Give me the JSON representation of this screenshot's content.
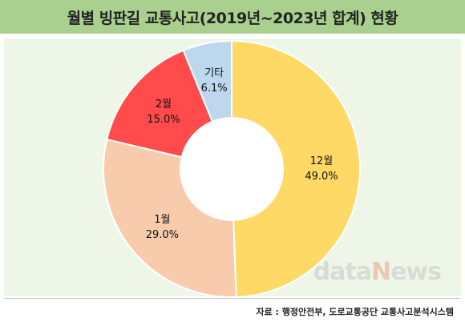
{
  "title": "월별 빙판길 교통사고(2019년~2023년 합계) 현황",
  "source": "자료 : 행정안전부, 도로교통공단 교통사고분석시스템",
  "watermark": {
    "part1": "data",
    "part2": "N",
    "part3": "ews"
  },
  "colors": {
    "title_bg": "#aad08f",
    "plot_bg": "#eef6e8",
    "slices": [
      "#ffd966",
      "#f8cbad",
      "#ff4b4b",
      "#bdd7ee"
    ]
  },
  "chart_data": {
    "type": "pie",
    "variant": "donut",
    "title": "월별 빙판길 교통사고(2019년~2023년 합계) 현황",
    "categories": [
      "12월",
      "1월",
      "2월",
      "기타"
    ],
    "values": [
      49.0,
      29.0,
      15.0,
      6.1
    ],
    "value_labels": [
      "49.0%",
      "29.0%",
      "15.0%",
      "6.1%"
    ],
    "start": "12 o'clock",
    "direction": "clockwise",
    "legend": "none"
  }
}
